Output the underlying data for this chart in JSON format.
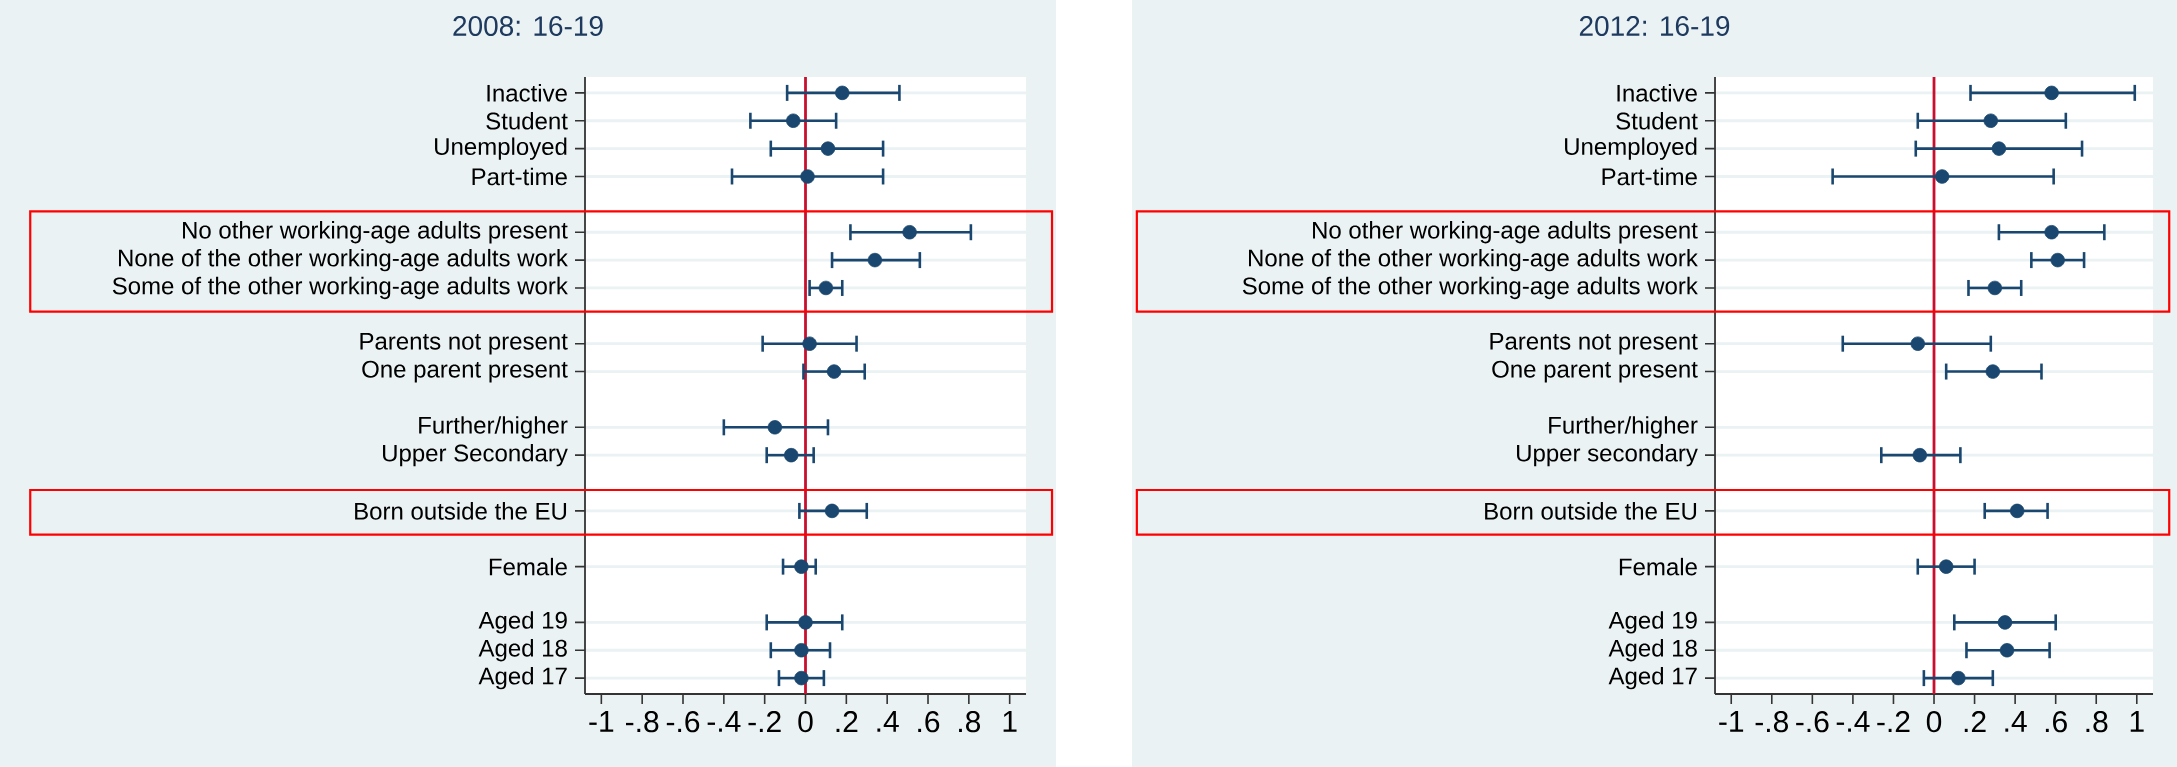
{
  "chart_data": [
    {
      "type": "scatter",
      "orientation": "horizontal",
      "title": "2008: 16-19",
      "color": "#1a476f",
      "marker": "circle",
      "grid": "y",
      "categories": [
        "Inactive",
        "Student",
        "Unemployed",
        "Part-time",
        null,
        "No other working-age adults present",
        "None of the other working-age adults work",
        "Some of the other working-age adults work",
        null,
        "Parents not present",
        "One parent present",
        null,
        "Further/higher",
        "Upper Secondary",
        null,
        "Born outside the EU",
        null,
        "Female",
        null,
        "Aged 19",
        "Aged 18",
        "Aged 17"
      ],
      "values": [
        0.18,
        -0.06,
        0.11,
        0.01,
        null,
        0.51,
        0.34,
        0.1,
        null,
        0.02,
        0.14,
        null,
        -0.15,
        -0.07,
        null,
        0.13,
        null,
        -0.02,
        null,
        0.0,
        -0.02,
        -0.02
      ],
      "errors": [
        [
          -0.09,
          0.46
        ],
        [
          -0.27,
          0.15
        ],
        [
          -0.17,
          0.38
        ],
        [
          -0.36,
          0.38
        ],
        null,
        [
          0.22,
          0.81
        ],
        [
          0.13,
          0.56
        ],
        [
          0.02,
          0.18
        ],
        null,
        [
          -0.21,
          0.25
        ],
        [
          -0.01,
          0.29
        ],
        null,
        [
          -0.4,
          0.11
        ],
        [
          -0.19,
          0.04
        ],
        null,
        [
          -0.03,
          0.3
        ],
        null,
        [
          -0.11,
          0.05
        ],
        null,
        [
          -0.19,
          0.18
        ],
        [
          -0.17,
          0.12
        ],
        [
          -0.13,
          0.09
        ]
      ],
      "xlim": [
        -1.08,
        1.08
      ],
      "xticks": [
        -1,
        {
          "value": -0.8,
          "label": "-.8"
        },
        {
          "value": -0.6,
          "label": "-.6"
        },
        {
          "value": -0.4,
          "label": "-.4"
        },
        {
          "value": -0.2,
          "label": "-.2"
        },
        0,
        {
          "value": 0.2,
          "label": ".2"
        },
        {
          "value": 0.4,
          "label": ".4"
        },
        {
          "value": 0.6,
          "label": ".6"
        },
        {
          "value": 0.8,
          "label": ".8"
        },
        1
      ],
      "ref_lines": [
        {
          "axis": "x",
          "value": 0,
          "color": "#c8102e"
        }
      ]
    },
    {
      "type": "scatter",
      "orientation": "horizontal",
      "title": "2012: 16-19",
      "color": "#1a476f",
      "marker": "circle",
      "grid": "y",
      "categories": [
        "Inactive",
        "Student",
        "Unemployed",
        "Part-time",
        null,
        "No other working-age adults present",
        "None of the other working-age adults work",
        "Some of the other working-age adults work",
        null,
        "Parents not present",
        "One parent present",
        null,
        "Further/higher",
        "Upper secondary",
        null,
        "Born outside the EU",
        null,
        "Female",
        null,
        "Aged 19",
        "Aged 18",
        "Aged 17"
      ],
      "values": [
        0.58,
        0.28,
        0.32,
        0.04,
        null,
        0.58,
        0.61,
        0.3,
        null,
        -0.08,
        0.29,
        null,
        null,
        -0.07,
        null,
        0.41,
        null,
        0.06,
        null,
        0.35,
        0.36,
        0.12
      ],
      "errors": [
        [
          0.18,
          0.99
        ],
        [
          -0.08,
          0.65
        ],
        [
          -0.09,
          0.73
        ],
        [
          -0.5,
          0.59
        ],
        null,
        [
          0.32,
          0.84
        ],
        [
          0.48,
          0.74
        ],
        [
          0.17,
          0.43
        ],
        null,
        [
          -0.45,
          0.28
        ],
        [
          0.06,
          0.53
        ],
        null,
        null,
        [
          -0.26,
          0.13
        ],
        null,
        [
          0.25,
          0.56
        ],
        null,
        [
          -0.08,
          0.2
        ],
        null,
        [
          0.1,
          0.6
        ],
        [
          0.16,
          0.57
        ],
        [
          -0.05,
          0.29
        ]
      ],
      "xlim": [
        -1.08,
        1.08
      ],
      "xticks": [
        -1,
        {
          "value": -0.8,
          "label": "-.8"
        },
        {
          "value": -0.6,
          "label": "-.6"
        },
        {
          "value": -0.4,
          "label": "-.4"
        },
        {
          "value": -0.2,
          "label": "-.2"
        },
        0,
        {
          "value": 0.2,
          "label": ".2"
        },
        {
          "value": 0.4,
          "label": ".4"
        },
        {
          "value": 0.6,
          "label": ".6"
        },
        {
          "value": 0.8,
          "label": ".8"
        },
        1
      ],
      "ref_lines": [
        {
          "axis": "x",
          "value": 0,
          "color": "#c8102e"
        }
      ]
    }
  ]
}
